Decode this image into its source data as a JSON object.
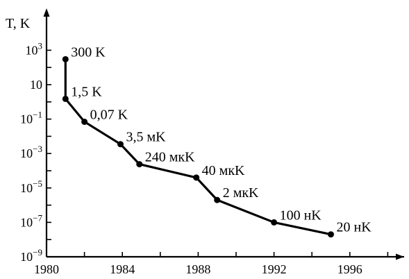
{
  "chart_data": {
    "type": "line",
    "title": "",
    "xlabel": "",
    "ylabel": "T, K",
    "y_scale": "log",
    "grid": false,
    "xlim": [
      1980,
      1999
    ],
    "ylim": [
      1e-09,
      10000.0
    ],
    "x_ticks": [
      1980,
      1984,
      1988,
      1992,
      1996
    ],
    "y_ticks": [
      {
        "base": "10",
        "exp": "3",
        "value": 1000
      },
      {
        "base": "10",
        "exp": "",
        "value": 10
      },
      {
        "base": "10",
        "exp": "−1",
        "value": 0.1
      },
      {
        "base": "10",
        "exp": "−3",
        "value": 0.001
      },
      {
        "base": "10",
        "exp": "−5",
        "value": 1e-05
      },
      {
        "base": "10",
        "exp": "−7",
        "value": 1e-07
      },
      {
        "base": "10",
        "exp": "−9",
        "value": 1e-09
      }
    ],
    "series": [
      {
        "points": [
          {
            "x": 1981.0,
            "y": 300,
            "label": "300 K"
          },
          {
            "x": 1981.0,
            "y": 1.5,
            "label": "1,5 K"
          },
          {
            "x": 1982.0,
            "y": 0.07,
            "label": "0,07 K"
          },
          {
            "x": 1983.9,
            "y": 0.0035,
            "label": "3,5 мK"
          },
          {
            "x": 1984.9,
            "y": 0.00024,
            "label": "240 мкK"
          },
          {
            "x": 1987.9,
            "y": 4e-05,
            "label": "40 мкK"
          },
          {
            "x": 1989.0,
            "y": 2e-06,
            "label": "2 мкK"
          },
          {
            "x": 1992.0,
            "y": 1e-07,
            "label": "100 нK"
          },
          {
            "x": 1995.0,
            "y": 2e-08,
            "label": "20 нK"
          }
        ]
      }
    ]
  }
}
